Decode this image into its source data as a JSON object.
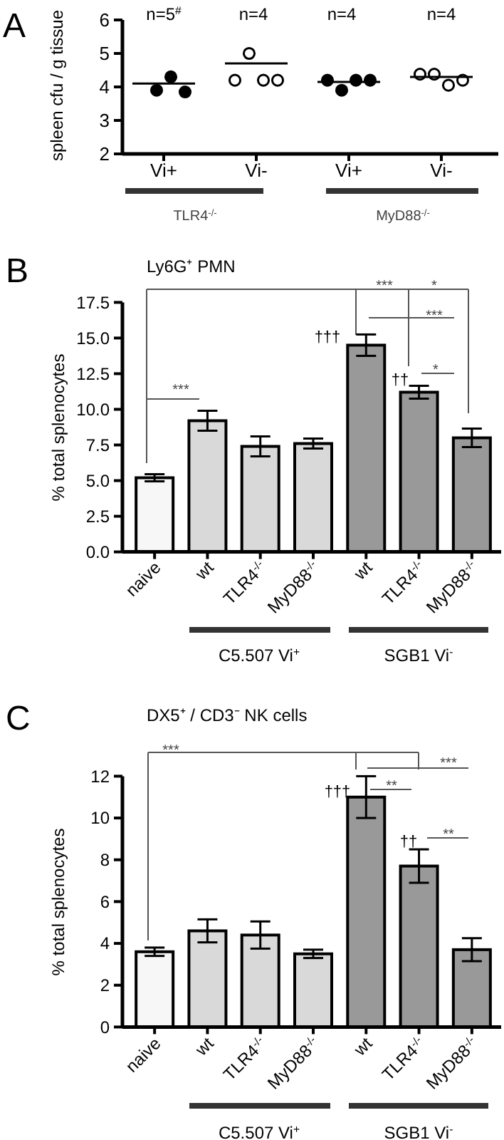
{
  "chart_data": [
    {
      "type": "scatter",
      "title": "A",
      "ylabel": "spleen cfu / g tissue",
      "categories": [
        "Vi+",
        "Vi-",
        "Vi+",
        "Vi-"
      ],
      "ylim": [
        2,
        6
      ],
      "yticks": [
        2,
        3,
        4,
        5,
        6
      ],
      "marker": "circle",
      "series": [
        {
          "colors": [
            null,
            "#ffffff",
            "#000000",
            "#ffffff"
          ],
          "values": [
            null,
            4.2,
            4.2,
            4.38
          ]
        },
        {
          "colors": [
            "#000000",
            "#ffffff",
            "#000000",
            "#ffffff"
          ],
          "values": [
            3.9,
            5.0,
            3.9,
            4.38
          ]
        },
        {
          "colors": [
            "#000000",
            "#ffffff",
            "#000000",
            "#ffffff"
          ],
          "values": [
            4.3,
            4.2,
            4.2,
            4.05
          ]
        },
        {
          "colors": [
            "#000000",
            "#ffffff",
            "#000000",
            "#ffffff"
          ],
          "values": [
            3.85,
            4.2,
            4.2,
            4.2
          ]
        },
        {
          "type": "box",
          "color": "#000000",
          "boxes": [
            {
              "low": 4.1,
              "q1": 4.1,
              "median": 4.1,
              "q3": 4.1,
              "high": 4.1
            },
            {
              "low": 4.7,
              "q1": 4.7,
              "median": 4.7,
              "q3": 4.7,
              "high": 4.7
            },
            {
              "low": 4.15,
              "q1": 4.15,
              "median": 4.15,
              "q3": 4.15,
              "high": 4.15
            },
            {
              "low": 4.3,
              "q1": 4.3,
              "median": 4.3,
              "q3": 4.3,
              "high": 4.3
            }
          ]
        }
      ],
      "annotations": [
        "n=5$^{#}$",
        "n=4",
        "n=4",
        "n=4",
        "TLR4$^{-/-}$",
        "MyD88$^{-/-}$"
      ]
    },
    {
      "type": "bar",
      "title": "B",
      "subtitle": "Ly6G⁺ PMN",
      "ylabel": "% total splenocytes",
      "categories": [
        "naive",
        "wt",
        "TLR4$^{-/-}$",
        "MyD88$^{-/-}$",
        "wt",
        "TLR4$^{-/-}$",
        "MyD88$^{-/-}$"
      ],
      "values": [
        5.2,
        9.2,
        7.4,
        7.6,
        14.5,
        11.2,
        8.0
      ],
      "errors": [
        0.25,
        0.7,
        0.7,
        0.35,
        0.75,
        0.45,
        0.65
      ],
      "colors": [
        "#f7f7f7",
        "#d9d9d9",
        "#d9d9d9",
        "#d9d9d9",
        "#999999",
        "#999999",
        "#999999"
      ],
      "ylim": [
        0,
        17.5
      ],
      "yticks": [
        {
          "value": 0,
          "label": "0.0"
        },
        {
          "value": 2.5,
          "label": "2.5"
        },
        {
          "value": 5,
          "label": "5.0"
        },
        {
          "value": 7.5,
          "label": "7.5"
        },
        {
          "value": 10,
          "label": "10.0"
        },
        {
          "value": 12.5,
          "label": "12.5"
        },
        {
          "value": 15,
          "label": "15.0"
        },
        {
          "value": 17.5,
          "label": "17.5"
        }
      ],
      "annotations": [
        "***",
        "***",
        "*",
        "***",
        "*",
        "†††",
        "††",
        "C5.507 Vi$^{+}$",
        "SGB1 Vi$^{-}$"
      ]
    },
    {
      "type": "bar",
      "title": "C",
      "subtitle": "DX5⁺ / CD3⁻ NK cells",
      "ylabel": "% total splenocytes",
      "categories": [
        "naive",
        "wt",
        "TLR4$^{-/-}$",
        "MyD88$^{-/-}$",
        "wt",
        "TLR4$^{-/-}$",
        "MyD88$^{-/-}$"
      ],
      "values": [
        3.6,
        4.6,
        4.4,
        3.5,
        11.0,
        7.7,
        3.7
      ],
      "errors": [
        0.2,
        0.55,
        0.65,
        0.2,
        1.0,
        0.8,
        0.55
      ],
      "colors": [
        "#f7f7f7",
        "#d9d9d9",
        "#d9d9d9",
        "#d9d9d9",
        "#999999",
        "#999999",
        "#999999"
      ],
      "ylim": [
        0,
        12
      ],
      "yticks": [
        0,
        2,
        4,
        6,
        8,
        10,
        12
      ],
      "annotations": [
        "***",
        "***",
        "**",
        "**",
        "†††",
        "††",
        "C5.507 Vi$^{+}$",
        "SGB1 Vi$^{-}$"
      ]
    }
  ]
}
